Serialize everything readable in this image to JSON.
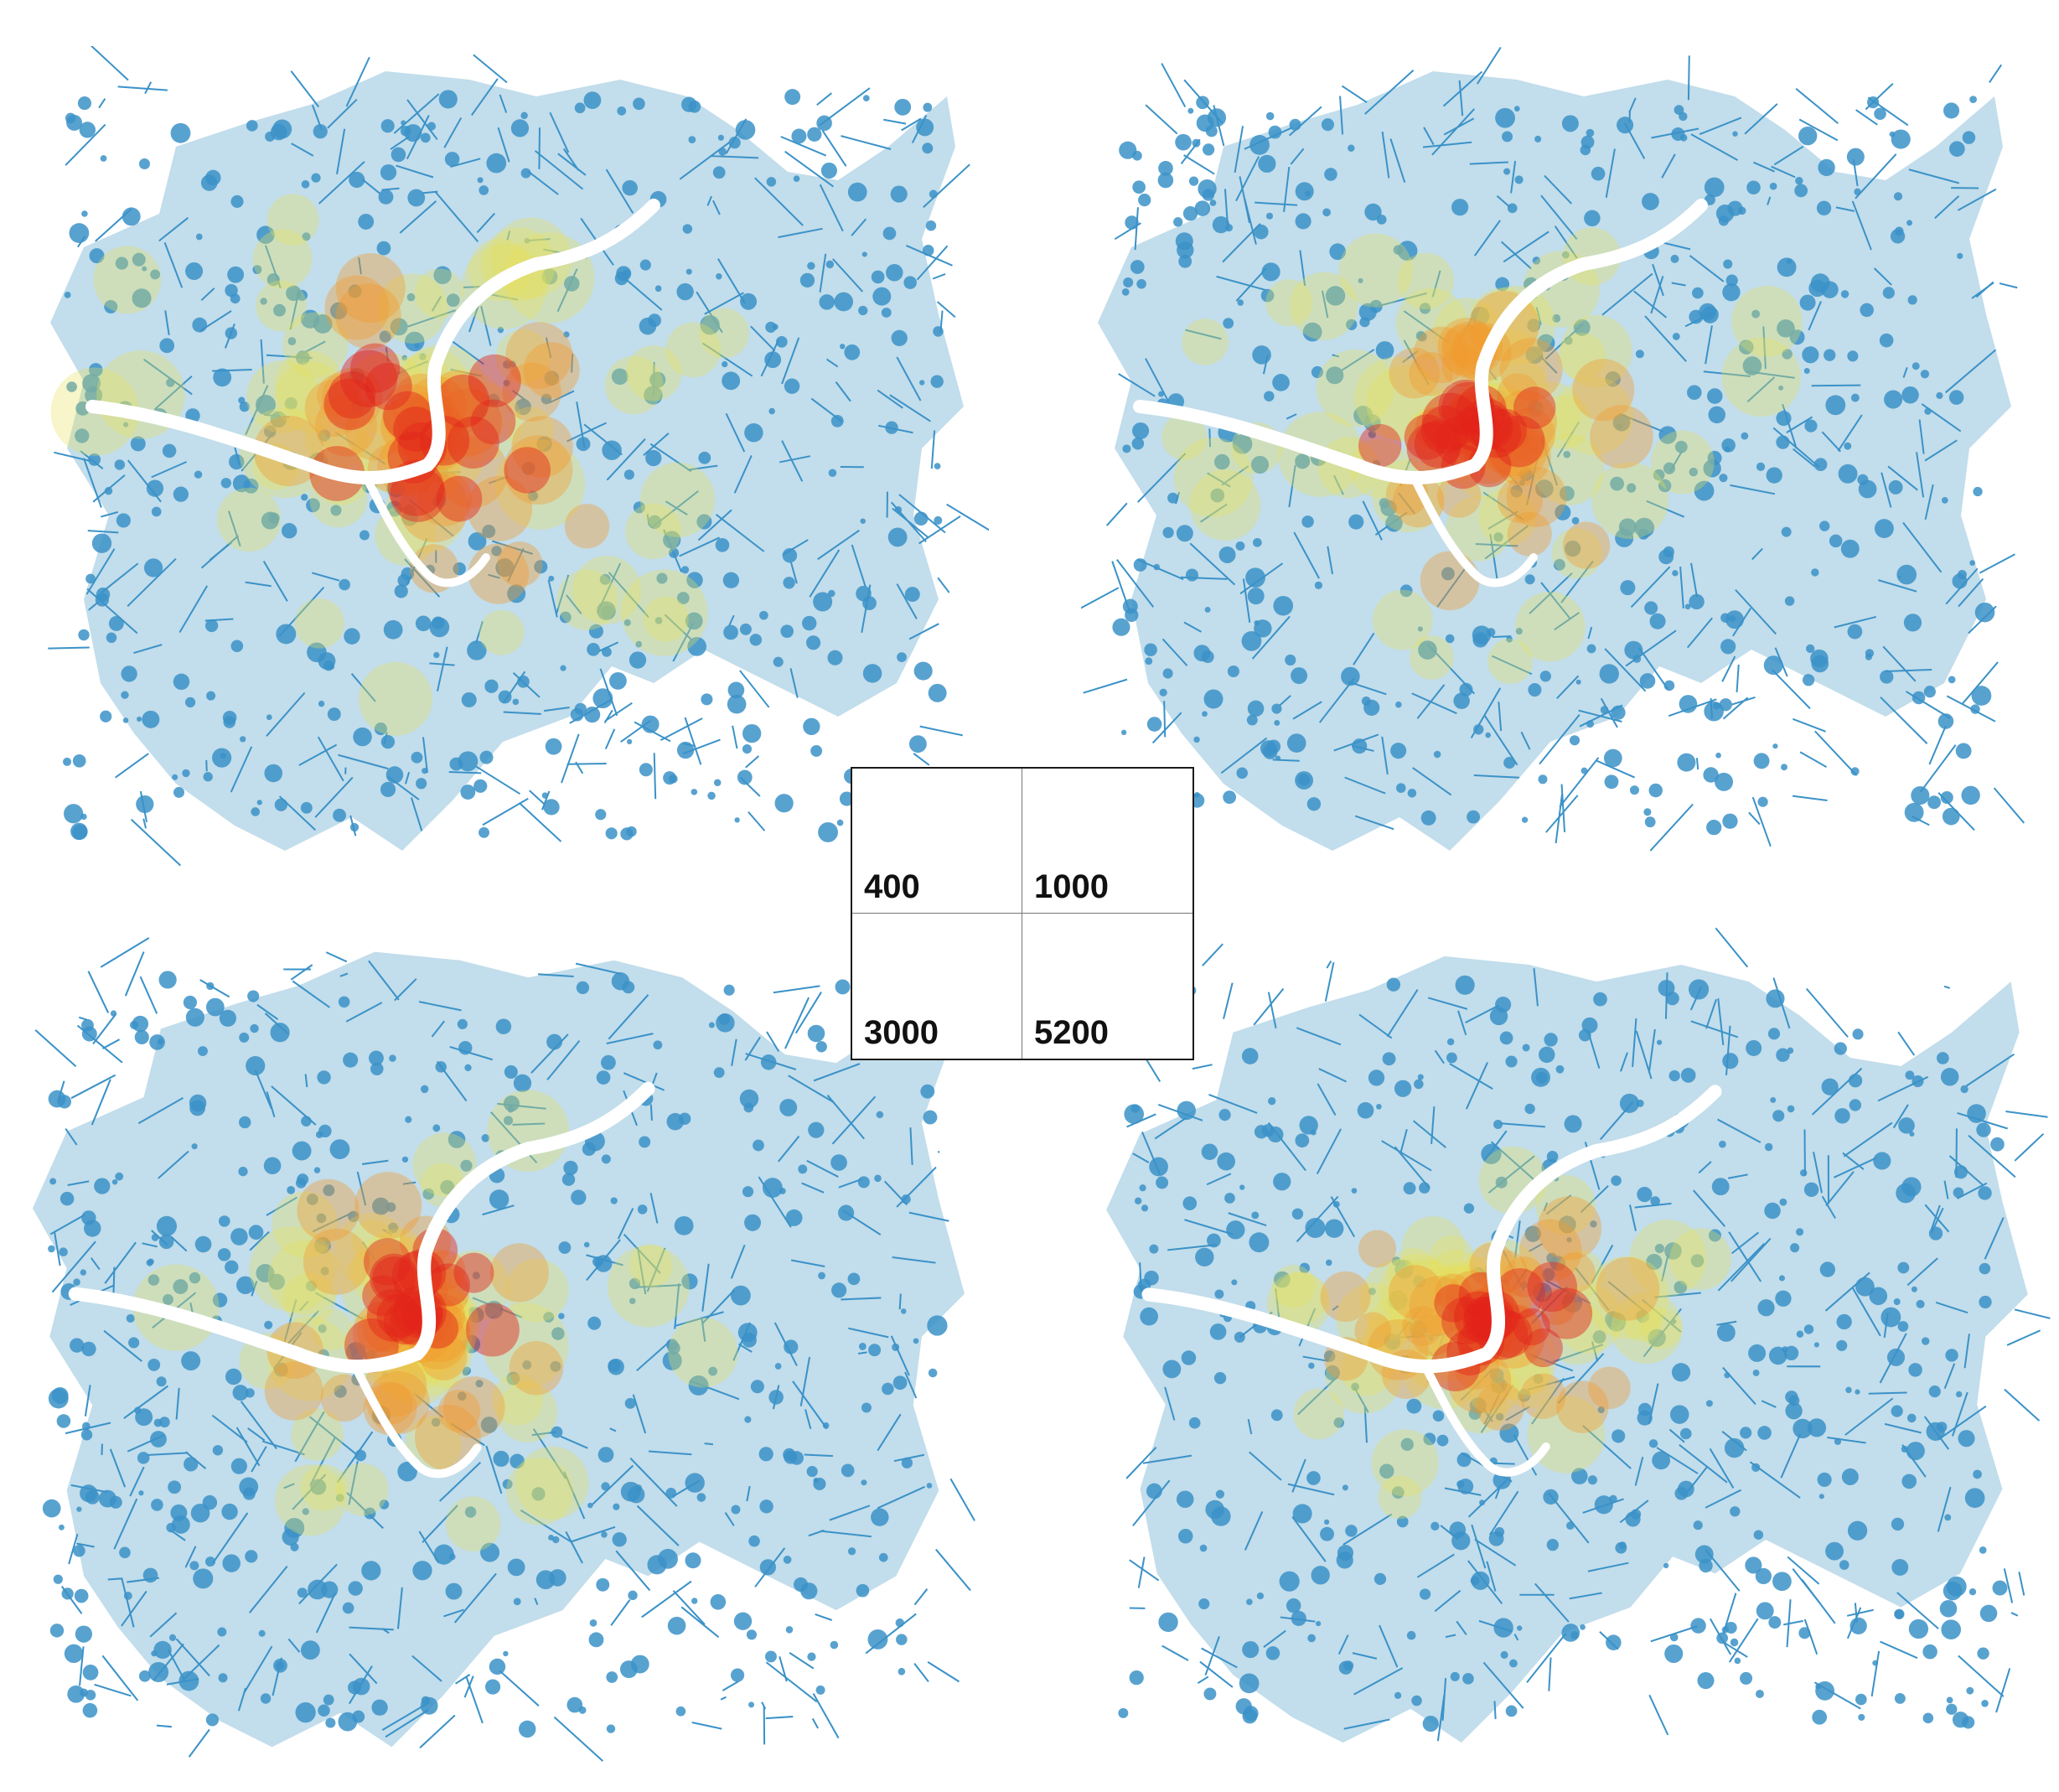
{
  "figure": {
    "panels": [
      {
        "id": "tl",
        "label": "400"
      },
      {
        "id": "tr",
        "label": "1000"
      },
      {
        "id": "bl",
        "label": "3000"
      },
      {
        "id": "br",
        "label": "5200"
      }
    ]
  },
  "legend": {
    "cells": [
      "400",
      "1000",
      "3000",
      "5200"
    ]
  },
  "colors": {
    "network": "#3b92c8",
    "low": "#4f9fc6",
    "mid": "#e8e25a",
    "high": "#f29a2e",
    "peak": "#e3231b"
  }
}
